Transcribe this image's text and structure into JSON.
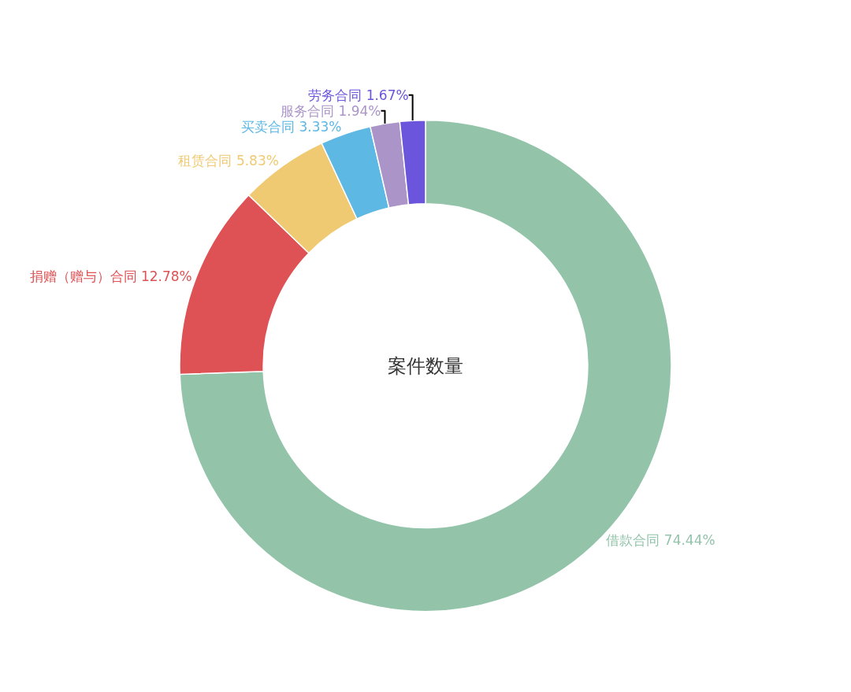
{
  "chart_data": {
    "type": "donut",
    "title": "案件数量",
    "categories": [
      "借款合同",
      "捐赠（赠与）合同",
      "租赁合同",
      "买卖合同",
      "服务合同",
      "劳务合同"
    ],
    "values": [
      74.44,
      12.78,
      5.83,
      3.33,
      1.94,
      1.67
    ],
    "value_labels": [
      "74.44%",
      "12.78%",
      "5.83%",
      "3.33%",
      "1.94%",
      "1.67%"
    ],
    "colors": [
      "#93c4aa",
      "#de5155",
      "#f0ca72",
      "#5db8e4",
      "#ab94c8",
      "#6a55dc"
    ],
    "legend": false
  }
}
